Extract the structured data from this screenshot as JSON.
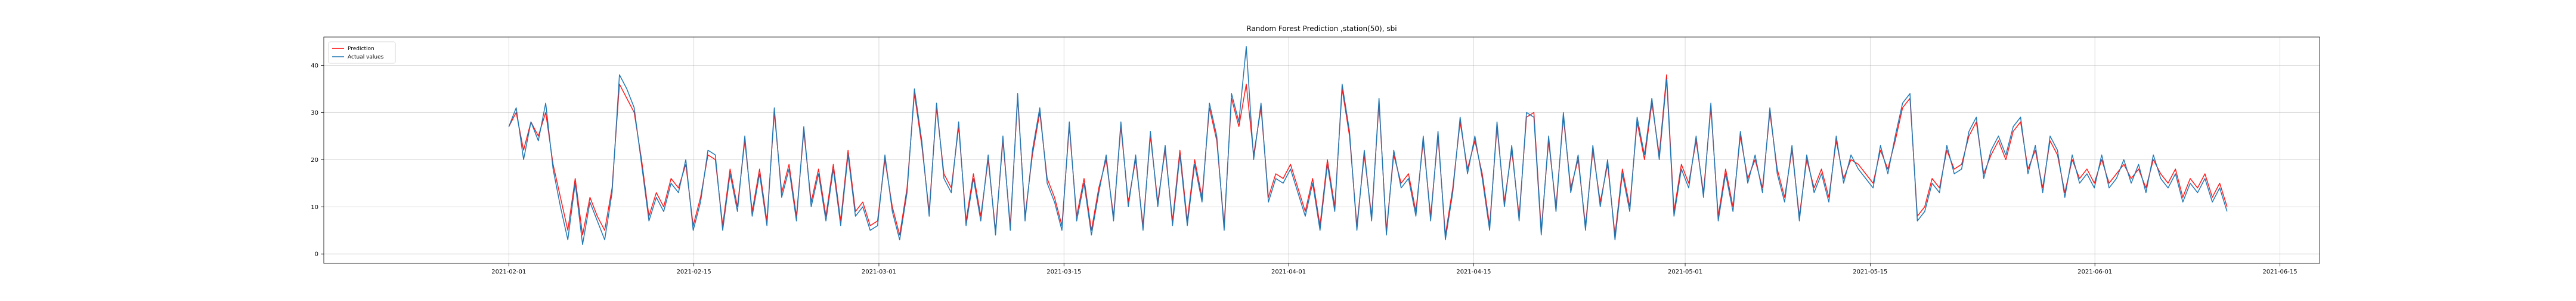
{
  "chart_data": {
    "type": "line",
    "title": "Random Forest Prediction ,station(50), sbi",
    "xlabel": "",
    "ylabel": "",
    "xlim": [
      "2021-01-18",
      "2021-06-18"
    ],
    "ylim": [
      -2,
      46
    ],
    "x_ticks": [
      "2021-02-01",
      "2021-02-15",
      "2021-03-01",
      "2021-03-15",
      "2021-04-01",
      "2021-04-15",
      "2021-05-01",
      "2021-05-15",
      "2021-06-01",
      "2021-06-15"
    ],
    "y_ticks": [
      0,
      10,
      20,
      30,
      40
    ],
    "grid": true,
    "legend_position": "top-left",
    "x_start": "2021-02-01",
    "x_end": "2021-06-11",
    "x_step_hours": 12,
    "colors": {
      "prediction": "#ff0000",
      "actual": "#1f77b4"
    },
    "series": [
      {
        "name": "Prediction",
        "values": [
          27,
          30,
          22,
          28,
          25,
          30,
          19,
          12,
          5,
          16,
          4,
          12,
          8,
          5,
          14,
          36,
          33,
          30,
          20,
          8,
          13,
          10,
          16,
          14,
          19,
          6,
          12,
          21,
          20,
          6,
          18,
          10,
          24,
          9,
          18,
          7,
          30,
          13,
          19,
          8,
          26,
          11,
          18,
          8,
          19,
          7,
          22,
          9,
          11,
          6,
          7,
          20,
          10,
          4,
          14,
          34,
          23,
          9,
          31,
          17,
          14,
          27,
          7,
          17,
          8,
          20,
          5,
          24,
          6,
          33,
          8,
          21,
          30,
          16,
          12,
          6,
          27,
          8,
          16,
          5,
          14,
          20,
          8,
          27,
          11,
          20,
          6,
          25,
          11,
          22,
          7,
          22,
          7,
          20,
          12,
          31,
          24,
          6,
          33,
          27,
          36,
          21,
          31,
          12,
          17,
          16,
          19,
          14,
          9,
          16,
          6,
          20,
          10,
          35,
          25,
          6,
          21,
          8,
          32,
          5,
          21,
          15,
          17,
          9,
          24,
          8,
          25,
          4,
          14,
          28,
          18,
          24,
          17,
          6,
          27,
          11,
          22,
          8,
          29,
          30,
          5,
          24,
          10,
          29,
          14,
          20,
          6,
          22,
          11,
          19,
          4,
          18,
          10,
          28,
          20,
          32,
          21,
          38,
          9,
          19,
          15,
          24,
          13,
          31,
          8,
          18,
          10,
          25,
          16,
          20,
          14,
          30,
          18,
          12,
          22,
          8,
          20,
          14,
          18,
          12,
          24,
          16,
          20,
          19,
          17,
          15,
          22,
          18,
          24,
          31,
          33,
          8,
          10,
          16,
          14,
          22,
          18,
          19,
          25,
          28,
          17,
          21,
          24,
          20,
          26,
          28,
          18,
          22,
          14,
          24,
          21,
          13,
          20,
          16,
          18,
          15,
          20,
          15,
          17,
          19,
          16,
          18,
          14,
          20,
          17,
          15,
          18,
          12,
          16,
          14,
          17,
          12,
          15,
          10
        ]
      },
      {
        "name": "Actual values",
        "values": [
          27,
          31,
          20,
          28,
          24,
          32,
          18,
          10,
          3,
          15,
          2,
          11,
          7,
          3,
          13,
          38,
          35,
          31,
          19,
          7,
          12,
          9,
          15,
          13,
          20,
          5,
          11,
          22,
          21,
          5,
          17,
          9,
          25,
          8,
          17,
          6,
          31,
          12,
          18,
          7,
          27,
          10,
          17,
          7,
          18,
          6,
          21,
          8,
          10,
          5,
          6,
          21,
          9,
          3,
          13,
          35,
          24,
          8,
          32,
          16,
          13,
          28,
          6,
          16,
          7,
          21,
          4,
          25,
          5,
          34,
          7,
          22,
          31,
          15,
          11,
          5,
          28,
          7,
          15,
          4,
          13,
          21,
          7,
          28,
          10,
          21,
          5,
          26,
          10,
          23,
          6,
          21,
          6,
          19,
          11,
          32,
          25,
          5,
          34,
          28,
          44,
          20,
          32,
          11,
          16,
          15,
          18,
          13,
          8,
          15,
          5,
          19,
          9,
          36,
          26,
          5,
          22,
          7,
          33,
          4,
          22,
          14,
          16,
          8,
          25,
          7,
          26,
          3,
          13,
          29,
          17,
          25,
          16,
          5,
          28,
          10,
          23,
          7,
          30,
          29,
          4,
          25,
          9,
          30,
          13,
          21,
          5,
          23,
          10,
          20,
          3,
          17,
          9,
          29,
          21,
          33,
          20,
          37,
          8,
          18,
          14,
          25,
          12,
          32,
          7,
          17,
          9,
          26,
          15,
          21,
          13,
          31,
          17,
          11,
          23,
          7,
          21,
          13,
          17,
          11,
          25,
          15,
          21,
          18,
          16,
          14,
          23,
          17,
          25,
          32,
          34,
          7,
          9,
          15,
          13,
          23,
          17,
          18,
          26,
          29,
          16,
          22,
          25,
          21,
          27,
          29,
          17,
          23,
          13,
          25,
          22,
          12,
          21,
          15,
          17,
          14,
          21,
          14,
          16,
          20,
          15,
          19,
          13,
          21,
          16,
          14,
          17,
          11,
          15,
          13,
          16,
          11,
          14,
          9
        ]
      }
    ]
  }
}
